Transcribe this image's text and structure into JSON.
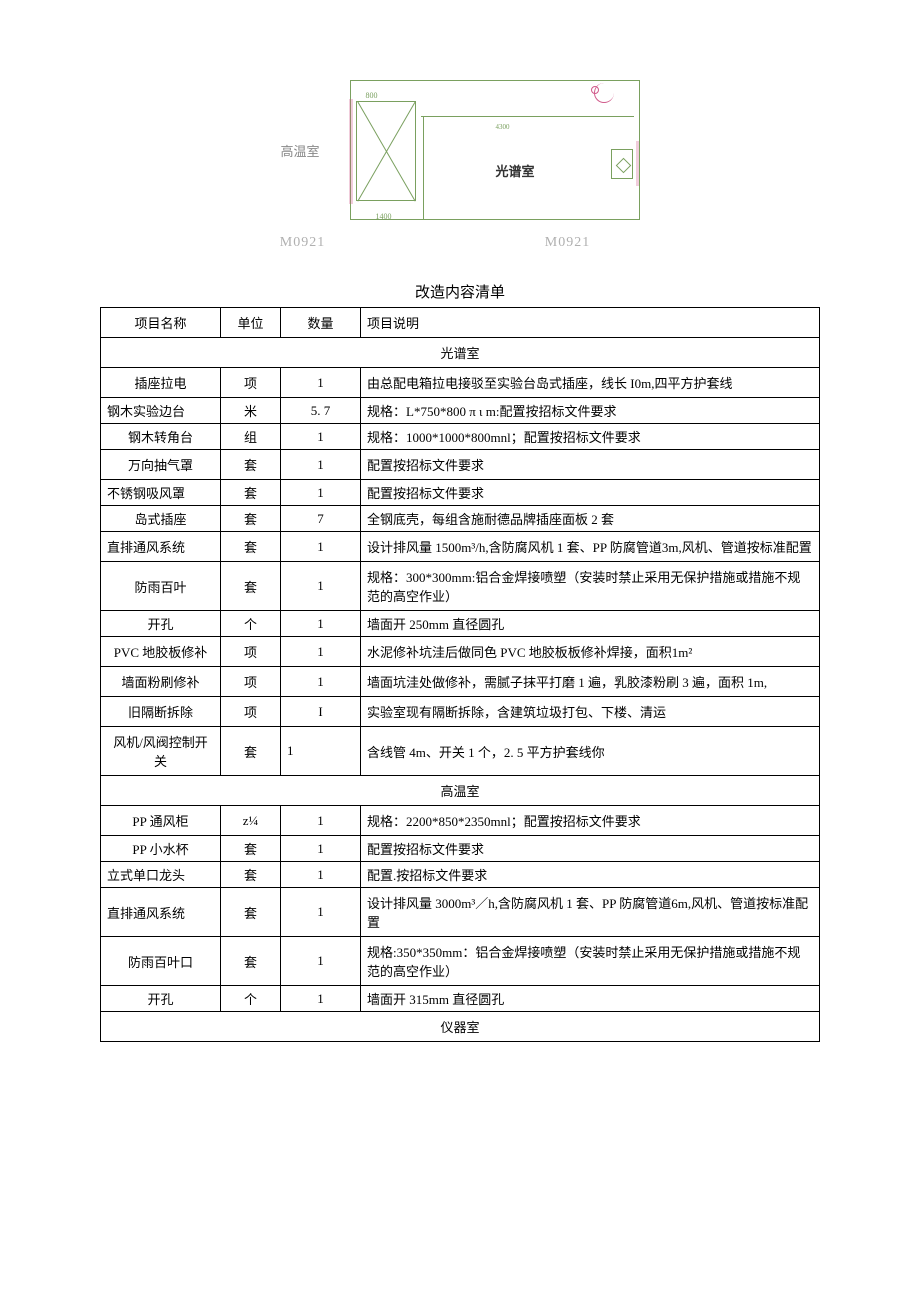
{
  "diagram": {
    "left_room_label": "高温室",
    "room_name": "光谱室",
    "dim_top": "800",
    "dim_top2": "4300",
    "dim_bottom": "1400",
    "model_left": "M0921",
    "model_right": "M0921"
  },
  "table_title": "改造内容清单",
  "headers": {
    "name": "项目名称",
    "unit": "单位",
    "qty": "数量",
    "desc": "项目说明"
  },
  "sections": [
    {
      "title": "光谱室",
      "rows": [
        {
          "name": "插座拉电",
          "unit": "项",
          "qty": "1",
          "desc": "由总配电箱拉电接驳至实验台岛式插座，线长 I0m,四平方护套线"
        },
        {
          "name": "钢木实验边台",
          "unit": "米",
          "qty": "5. 7",
          "desc": "规格：L*750*800 π ι m:配置按招标文件要求",
          "tight": true,
          "left_name": true
        },
        {
          "name": "钢木转角台",
          "unit": "组",
          "qty": "1",
          "desc": "规格：1000*1000*800mnl；配置按招标文件要求",
          "tight": true
        },
        {
          "name": "万向抽气罩",
          "unit": "套",
          "qty": "1",
          "desc": "配置按招标文件要求"
        },
        {
          "name": "不锈钢吸风罩",
          "unit": "套",
          "qty": "1",
          "desc": "配置按招标文件要求",
          "tight": true,
          "left_name": true
        },
        {
          "name": "岛式插座",
          "unit": "套",
          "qty": "7",
          "desc": "全钢底壳，每组含施耐德品牌插座面板 2 套",
          "tight": true
        },
        {
          "name": "直排通风系统",
          "unit": "套",
          "qty": "1",
          "desc": "设计排风量 1500m³/h,含防腐风机 1 套、PP 防腐管道3m,风机、管道按标准配置",
          "left_name": true
        },
        {
          "name": "防雨百叶",
          "unit": "套",
          "qty": "1",
          "desc": "规格：300*300mm:铝合金焊接喷塑（安装时禁止采用无保护措施或措施不规范的高空作业）"
        },
        {
          "name": "开孔",
          "unit": "个",
          "qty": "1",
          "desc": "墙面开 250mm 直径圆孔",
          "tight": true
        },
        {
          "name": "PVC 地胶板修补",
          "unit": "项",
          "qty": "1",
          "desc": "水泥修补坑洼后做同色 PVC 地胶板板修补焊接，面积1m²"
        },
        {
          "name": "墙面粉刷修补",
          "unit": "项",
          "qty": "1",
          "desc": "墙面坑洼处做修补，需腻子抹平打磨 1 遍，乳胶漆粉刷 3 遍，面积 1m,"
        },
        {
          "name": "旧隔断拆除",
          "unit": "项",
          "qty": "I",
          "desc": "实验室现有隔断拆除，含建筑垃圾打包、下楼、清运",
          "desc_valign_bottom": true
        },
        {
          "name": "风机/风阀控制开关",
          "unit": "套",
          "qty": "1",
          "desc": "含线管 4m、开关 1 个，2. 5 平方护套线你",
          "left_qty": true
        }
      ]
    },
    {
      "title": "高温室",
      "rows": [
        {
          "name": "PP 通风柜",
          "unit": "z¼",
          "qty": "1",
          "desc": "规格：2200*850*2350mnl；配置按招标文件要求"
        },
        {
          "name": "PP 小水杯",
          "unit": "套",
          "qty": "1",
          "desc": "配置按招标文件要求",
          "tight": true
        },
        {
          "name": "立式单口龙头",
          "unit": "套",
          "qty": "1",
          "desc": "配置.按招标文件要求",
          "tight": true,
          "left_name": true
        },
        {
          "name": "直排通风系统",
          "unit": "套",
          "qty": "1",
          "desc": "设计排风量 3000m³／h,含防腐风机 1 套、PP 防腐管道6m,风机、管道按标准配置",
          "left_name": true
        },
        {
          "name": "防雨百叶口",
          "unit": "套",
          "qty": "1",
          "desc": "规格:350*350mm：铝合金焊接喷塑（安装时禁止采用无保护措施或措施不规范的高空作业）"
        },
        {
          "name": "开孔",
          "unit": "个",
          "qty": "1",
          "desc": "墙面开 315mm 直径圆孔",
          "tight": true
        }
      ]
    },
    {
      "title": "仪器室",
      "rows": []
    }
  ]
}
